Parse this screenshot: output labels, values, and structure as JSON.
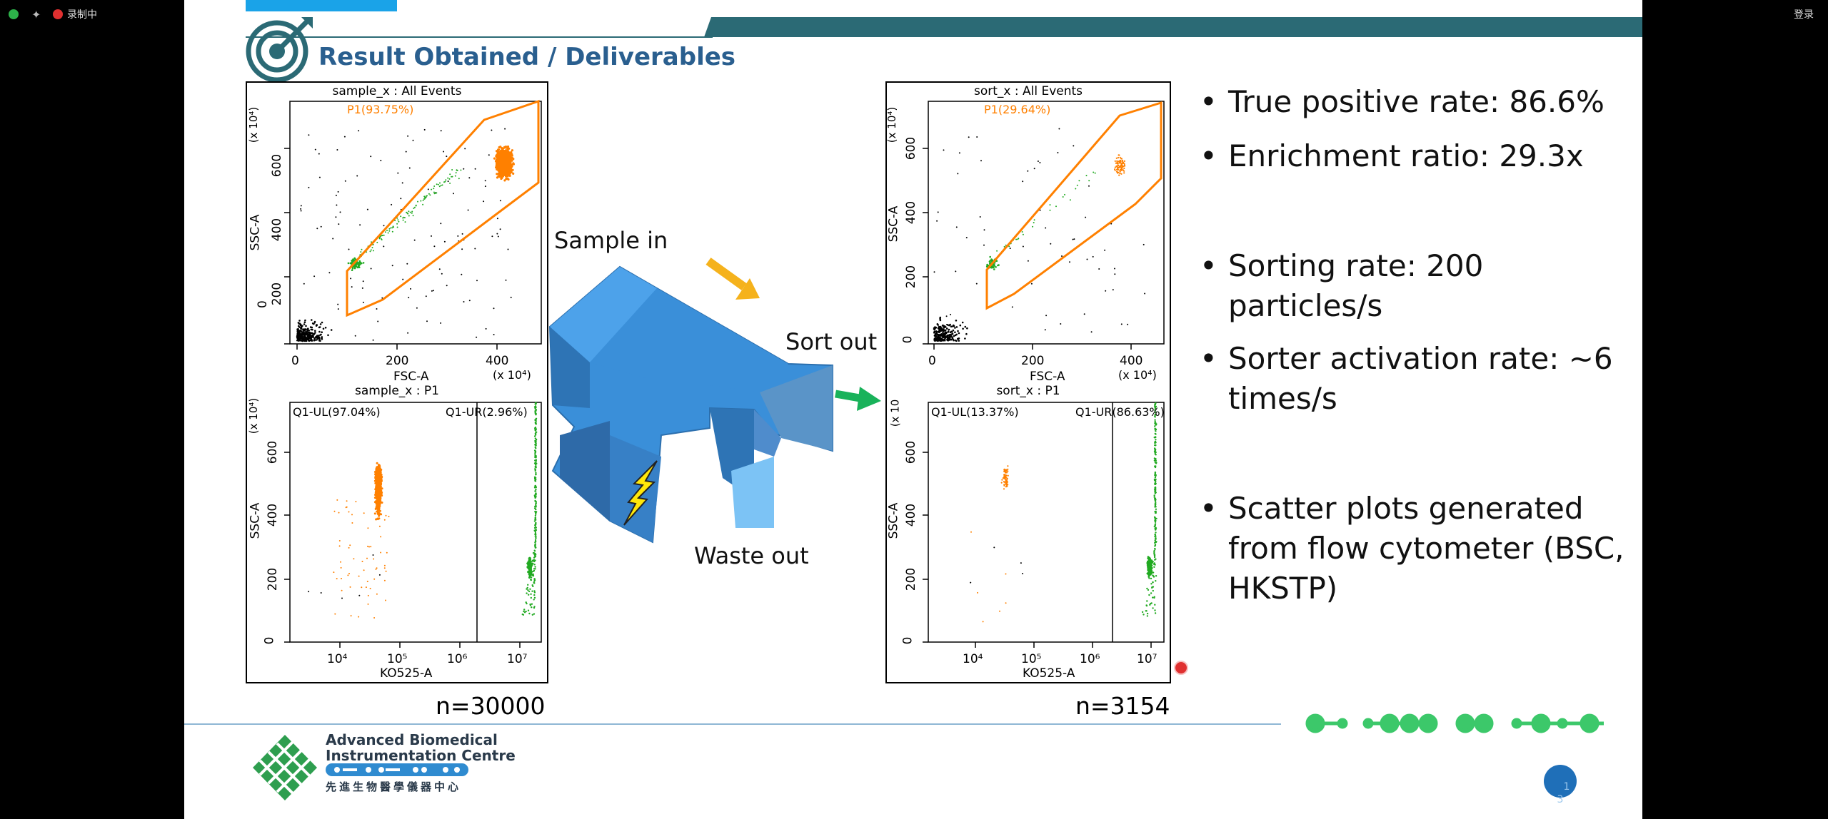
{
  "status_bar": {
    "recording_label": "录制中",
    "login_label": "登录"
  },
  "slide": {
    "title": "Result Obtained / Deliverables",
    "plots": {
      "sample_top": {
        "title": "sample_x : All Events",
        "gate": "P1(93.75%)",
        "xlabel": "FSC-A",
        "ylabel": "SSC-A",
        "xunit": "(x 10⁴)",
        "yunit": "(x 10⁴)",
        "xticks": [
          "0",
          "200",
          "400"
        ],
        "yticks": [
          "0",
          "200",
          "400",
          "600"
        ]
      },
      "sample_bottom": {
        "title": "sample_x : P1",
        "q_ul": "Q1-UL(97.04%)",
        "q_ur": "Q1-UR(2.96%)",
        "xlabel": "KO525-A",
        "ylabel": "SSC-A",
        "yunit": "(x 10⁴)",
        "xticks": [
          "10⁴",
          "10⁵",
          "10⁶",
          "10⁷"
        ],
        "yticks": [
          "0",
          "200",
          "400",
          "600"
        ]
      },
      "sort_top": {
        "title": "sort_x : All Events",
        "gate": "P1(29.64%)",
        "xlabel": "FSC-A",
        "ylabel": "SSC-A",
        "xunit": "(x 10⁴)",
        "yunit": "(x 10⁴)",
        "xticks": [
          "0",
          "200",
          "400"
        ],
        "yticks": [
          "0",
          "200",
          "400",
          "600"
        ]
      },
      "sort_bottom": {
        "title": "sort_x : P1",
        "q_ul": "Q1-UL(13.37%)",
        "q_ur": "Q1-UR(86.63%)",
        "xlabel": "KO525-A",
        "ylabel": "SSC-A",
        "yunit": "(x 10",
        "xticks": [
          "10⁴",
          "10⁵",
          "10⁶",
          "10⁷"
        ],
        "yticks": [
          "0",
          "200",
          "400",
          "600"
        ]
      }
    },
    "n_sample": "n=30000",
    "n_sort": "n=3154",
    "chip": {
      "sample_in": "Sample in",
      "sort_out": "Sort out",
      "waste_out": "Waste out"
    },
    "bullets": [
      "True positive rate: 86.6%",
      "Enrichment ratio: 29.3x",
      "Sorting rate: 200 particles/s",
      "Sorter activation rate: ~6 times/s",
      "Scatter plots generated from flow cytometer (BSC, HKSTP)"
    ],
    "footer": {
      "org_line1": "Advanced Biomedical",
      "org_line2": "Instrumentation Centre",
      "org_chinese": "先進生物醫學儀器中心",
      "page_number": "1\n3"
    },
    "colors": {
      "title": "#2a5f8f",
      "orange_gate": "#ff8000",
      "green_cells": "#22aa22",
      "chip_blue": "#3a8fd9",
      "accent_bar": "#2b6a75",
      "cyan_tab": "#1aa3e8"
    }
  }
}
